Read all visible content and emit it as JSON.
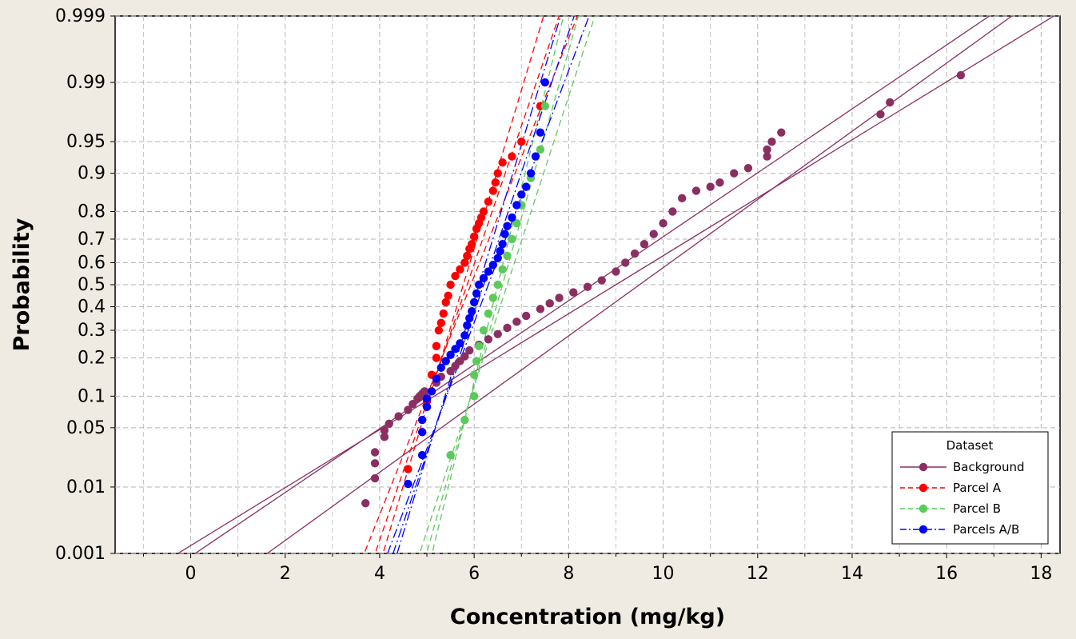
{
  "chart_data": {
    "type": "scatter",
    "subtype": "normal probability plot with fitted lines and 95% confidence bands",
    "xlabel": "Concentration (mg/kg)",
    "ylabel": "Probability",
    "xlim": [
      -1.6,
      18.4
    ],
    "ylim": [
      0.001,
      0.999
    ],
    "y_scale": "normal-probability",
    "x_ticks": [
      0,
      2,
      4,
      6,
      8,
      10,
      12,
      14,
      16,
      18
    ],
    "x_tick_labels": [
      "0",
      "2",
      "4",
      "6",
      "8",
      "10",
      "12",
      "14",
      "16",
      "18"
    ],
    "y_ticks": [
      0.001,
      0.01,
      0.05,
      0.1,
      0.2,
      0.3,
      0.4,
      0.5,
      0.6,
      0.7,
      0.8,
      0.9,
      0.95,
      0.99,
      0.999
    ],
    "y_tick_labels": [
      "0.001",
      "0.01",
      "0.05",
      "0.1",
      "0.2",
      "0.3",
      "0.4",
      "0.5",
      "0.6",
      "0.7",
      "0.8",
      "0.9",
      "0.95",
      "0.99",
      "0.999"
    ],
    "grid": true,
    "legend": {
      "title": "Dataset",
      "position": "bottom-right",
      "entries": [
        "Background",
        "Parcel A",
        "Parcel B",
        "Parcels A/B"
      ]
    },
    "series": [
      {
        "name": "Background",
        "color": "#8b2f63",
        "line_style": "solid",
        "fit_mean": 9.0,
        "fit_sd": 3.0,
        "ci_low_mean": 8.5,
        "ci_low_sd": 2.72,
        "ci_high_mean": 9.5,
        "ci_high_sd": 2.55,
        "x": [
          3.7,
          3.9,
          3.9,
          3.9,
          4.1,
          4.1,
          4.2,
          4.4,
          4.6,
          4.7,
          4.8,
          4.85,
          4.9,
          4.95,
          5.2,
          5.3,
          5.5,
          5.6,
          5.7,
          5.8,
          5.9,
          6.1,
          6.3,
          6.5,
          6.7,
          6.9,
          7.1,
          7.4,
          7.6,
          7.8,
          8.1,
          8.4,
          8.7,
          9.0,
          9.2,
          9.4,
          9.6,
          9.8,
          10.0,
          10.2,
          10.4,
          10.7,
          11.0,
          11.2,
          11.5,
          11.8,
          12.2,
          12.2,
          12.3,
          12.5,
          14.6,
          14.8,
          16.3
        ],
        "y": [
          0.006,
          0.013,
          0.02,
          0.027,
          0.04,
          0.047,
          0.055,
          0.065,
          0.075,
          0.085,
          0.095,
          0.1,
          0.105,
          0.11,
          0.13,
          0.145,
          0.16,
          0.175,
          0.19,
          0.205,
          0.225,
          0.245,
          0.265,
          0.285,
          0.31,
          0.335,
          0.36,
          0.39,
          0.415,
          0.44,
          0.465,
          0.49,
          0.52,
          0.56,
          0.6,
          0.64,
          0.68,
          0.72,
          0.76,
          0.8,
          0.84,
          0.86,
          0.87,
          0.88,
          0.9,
          0.91,
          0.93,
          0.94,
          0.95,
          0.96,
          0.975,
          0.982,
          0.992
        ]
      },
      {
        "name": "Parcel A",
        "color": "#ff0000",
        "line_style": "dashed",
        "fit_mean": 5.85,
        "fit_sd": 0.63,
        "ci_low_mean": 5.77,
        "ci_low_sd": 0.55,
        "ci_high_mean": 5.93,
        "ci_high_sd": 0.73,
        "x": [
          4.6,
          5.0,
          5.1,
          5.2,
          5.2,
          5.25,
          5.3,
          5.35,
          5.4,
          5.45,
          5.5,
          5.6,
          5.7,
          5.8,
          5.85,
          5.9,
          5.95,
          6.0,
          6.05,
          6.1,
          6.15,
          6.2,
          6.3,
          6.4,
          6.45,
          6.5,
          6.6,
          6.8,
          7.0,
          7.4
        ],
        "y": [
          0.017,
          0.09,
          0.15,
          0.2,
          0.24,
          0.3,
          0.33,
          0.37,
          0.42,
          0.45,
          0.5,
          0.54,
          0.57,
          0.6,
          0.63,
          0.66,
          0.68,
          0.71,
          0.74,
          0.76,
          0.78,
          0.8,
          0.83,
          0.86,
          0.88,
          0.9,
          0.92,
          0.93,
          0.95,
          0.98
        ]
      },
      {
        "name": "Parcel B",
        "color": "#5cc95c",
        "line_style": "dashed",
        "fit_mean": 6.6,
        "fit_sd": 0.52,
        "ci_low_mean": 6.5,
        "ci_low_sd": 0.45,
        "ci_high_mean": 6.7,
        "ci_high_sd": 0.6,
        "x": [
          5.5,
          5.8,
          6.0,
          6.0,
          6.05,
          6.1,
          6.2,
          6.3,
          6.4,
          6.5,
          6.6,
          6.7,
          6.8,
          6.9,
          7.0,
          7.2,
          7.4,
          7.5
        ],
        "y": [
          0.025,
          0.06,
          0.1,
          0.15,
          0.19,
          0.24,
          0.3,
          0.37,
          0.44,
          0.5,
          0.57,
          0.63,
          0.7,
          0.76,
          0.82,
          0.89,
          0.94,
          0.98
        ]
      },
      {
        "name": "Parcels A/B",
        "color": "#0000ff",
        "line_style": "dashdot",
        "fit_mean": 6.2,
        "fit_sd": 0.62,
        "ci_low_mean": 6.1,
        "ci_low_sd": 0.56,
        "ci_high_mean": 6.3,
        "ci_high_sd": 0.69,
        "x": [
          4.6,
          4.9,
          4.9,
          4.9,
          5.0,
          5.0,
          5.1,
          5.2,
          5.3,
          5.4,
          5.5,
          5.6,
          5.7,
          5.8,
          5.85,
          5.9,
          5.95,
          6.0,
          6.05,
          6.1,
          6.2,
          6.3,
          6.4,
          6.5,
          6.55,
          6.6,
          6.65,
          6.7,
          6.8,
          6.9,
          7.0,
          7.1,
          7.2,
          7.3,
          7.4,
          7.5
        ],
        "y": [
          0.011,
          0.025,
          0.045,
          0.06,
          0.08,
          0.095,
          0.11,
          0.14,
          0.17,
          0.19,
          0.21,
          0.23,
          0.25,
          0.28,
          0.32,
          0.35,
          0.38,
          0.42,
          0.46,
          0.5,
          0.53,
          0.56,
          0.59,
          0.62,
          0.65,
          0.68,
          0.72,
          0.75,
          0.78,
          0.82,
          0.85,
          0.87,
          0.9,
          0.93,
          0.96,
          0.99
        ]
      }
    ]
  }
}
